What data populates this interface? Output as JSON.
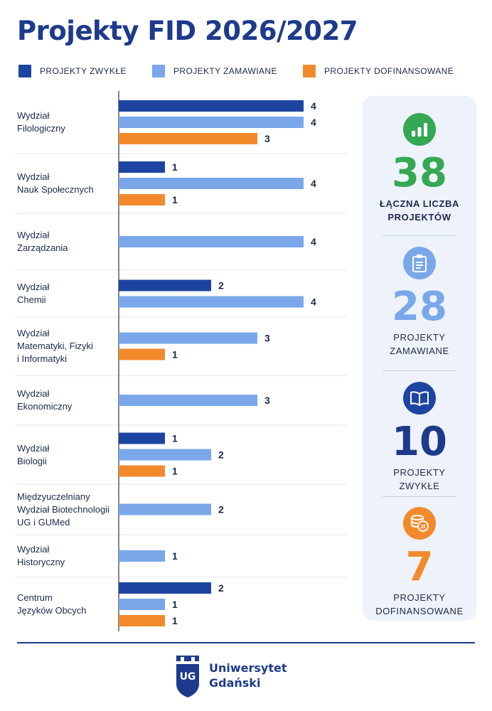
{
  "title": "Projekty FID 2026/2027",
  "colors": {
    "zwykle": "#1d44a0",
    "zamawiane": "#7aa7ea",
    "dofinansowane": "#f28a2c",
    "green": "#34a853",
    "grid": "#e3e7ef",
    "axis": "#2c3442"
  },
  "legend": [
    {
      "label": "PROJEKTY ZWYKŁE",
      "color_key": "zwykle"
    },
    {
      "label": "PROJEKTY ZAMAWIANE",
      "color_key": "zamawiane"
    },
    {
      "label": "PROJEKTY DOFINANSOWANE",
      "color_key": "dofinansowane"
    }
  ],
  "chart_data": {
    "type": "bar",
    "orientation": "horizontal",
    "grid": false,
    "legend_position": "top",
    "xlim": [
      0,
      4
    ],
    "categories": [
      "Wydział\nFilologiczny",
      "Wydział\nNauk Społecznych",
      "Wydział\nZarządzania",
      "Wydział\nChemii",
      "Wydział\nMatematyki, Fizyki\ni Informatyki",
      "Wydział\nEkonomiczny",
      "Wydział\nBiologii",
      "Międzyuczelniany\nWydział Biotechnologii\nUG i GUMed",
      "Wydział\nHistoryczny",
      "Centrum\nJęzyków Obcych"
    ],
    "series": [
      {
        "name": "PROJEKTY ZWYKŁE",
        "color_key": "zwykle",
        "values": [
          4,
          1,
          null,
          2,
          null,
          null,
          1,
          null,
          null,
          2
        ]
      },
      {
        "name": "PROJEKTY ZAMAWIANE",
        "color_key": "zamawiane",
        "values": [
          4,
          4,
          4,
          4,
          3,
          3,
          2,
          2,
          1,
          1
        ]
      },
      {
        "name": "PROJEKTY DOFINANSOWANE",
        "color_key": "dofinansowane",
        "values": [
          3,
          1,
          null,
          null,
          1,
          null,
          1,
          null,
          null,
          1
        ]
      }
    ]
  },
  "stats": [
    {
      "value": "38",
      "label": "ŁĄCZNA LICZBA PROJEKTÓW",
      "icon": "bar-chart-icon",
      "color_key": "green"
    },
    {
      "value": "28",
      "label": "PROJEKTY ZAMAWIANE",
      "icon": "clipboard-icon",
      "color_key": "zamawiane"
    },
    {
      "value": "10",
      "label": "PROJEKTY ZWYKŁE",
      "icon": "book-icon",
      "color_key": "zwykle"
    },
    {
      "value": "7",
      "label": "PROJEKTY DOFINANSOWANE",
      "icon": "coins-icon",
      "color_key": "dofinansowane"
    }
  ],
  "coin_symbol": "zł",
  "footer": {
    "university_name": "Uniwersytet\nGdański",
    "logo_letters": "UG"
  }
}
